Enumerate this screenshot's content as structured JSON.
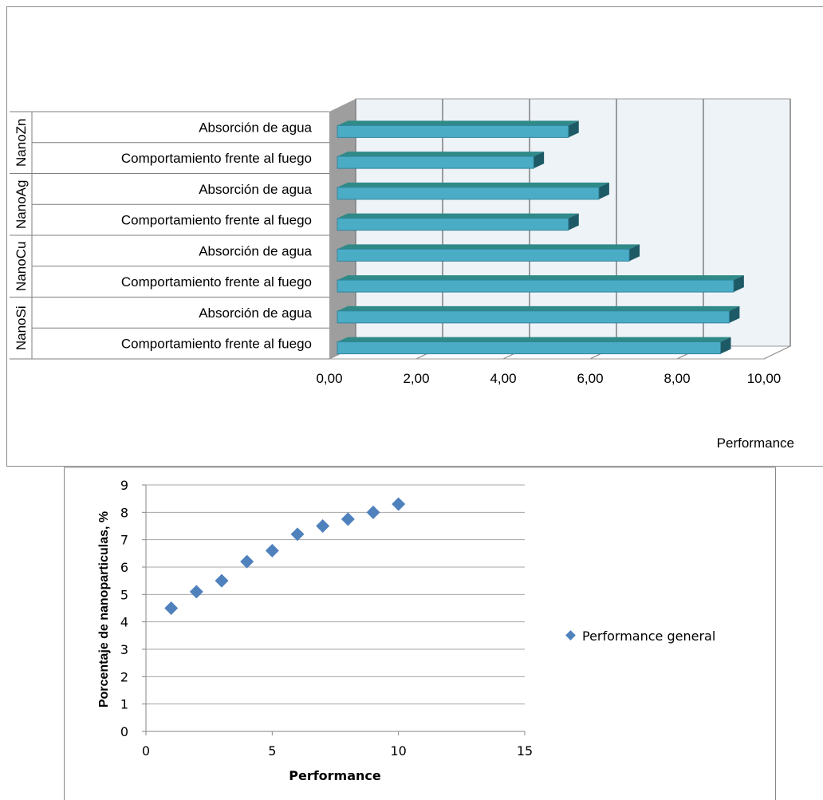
{
  "chart_data": [
    {
      "type": "bar",
      "orientation": "horizontal",
      "groups": [
        {
          "name": "NanoZn",
          "categories": [
            "Absorción de agua",
            "Comportamiento frente al fuego"
          ],
          "values": [
            5.5,
            4.7
          ]
        },
        {
          "name": "NanoAg",
          "categories": [
            "Absorción de agua",
            "Comportamiento frente al fuego"
          ],
          "values": [
            6.2,
            5.5
          ]
        },
        {
          "name": "NanoCu",
          "categories": [
            "Absorción de agua",
            "Comportamiento frente al fuego"
          ],
          "values": [
            6.9,
            9.3
          ]
        },
        {
          "name": "NanoSi",
          "categories": [
            "Absorción de agua",
            "Comportamiento frente al fuego"
          ],
          "values": [
            9.2,
            9.0
          ]
        }
      ],
      "x_ticks": [
        "0,00",
        "2,00",
        "4,00",
        "6,00",
        "8,00",
        "10,00"
      ],
      "xlim": [
        0,
        10
      ],
      "xlabel": "Performance",
      "grid": true,
      "three_d": true,
      "bar_color": "#4bacc6"
    },
    {
      "type": "scatter",
      "series": [
        {
          "name": "Performance general",
          "x": [
            1,
            2,
            3,
            4,
            5,
            6,
            7,
            8,
            9,
            10
          ],
          "y": [
            4.5,
            5.1,
            5.5,
            6.2,
            6.6,
            7.2,
            7.5,
            7.75,
            8.0,
            8.3
          ]
        }
      ],
      "x_ticks": [
        "0",
        "5",
        "10",
        "15"
      ],
      "y_ticks": [
        "0",
        "1",
        "2",
        "3",
        "4",
        "5",
        "6",
        "7",
        "8",
        "9"
      ],
      "xlim": [
        0,
        15
      ],
      "ylim": [
        0,
        9
      ],
      "xlabel": "Performance",
      "ylabel": "Porcentaje de nanoparticulas, %",
      "grid": true,
      "legend": "right",
      "marker_color": "#4f81bd"
    }
  ]
}
